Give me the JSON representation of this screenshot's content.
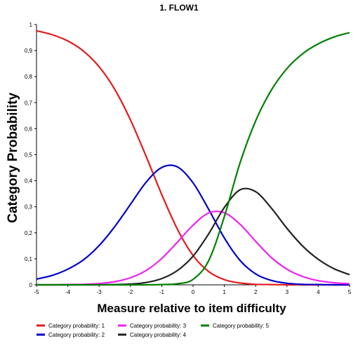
{
  "chart_data": {
    "type": "line",
    "title": "1. FLOW1",
    "xlabel": "Measure relative to item difficulty",
    "ylabel": "Category Probability",
    "xlim": [
      -5,
      5
    ],
    "ylim": [
      0,
      1
    ],
    "x_ticks": [
      "-5",
      "-4",
      "-3",
      "-2",
      "-1",
      "0",
      "1",
      "2",
      "3",
      "4",
      "5"
    ],
    "y_ticks": [
      "0",
      "0,1",
      "0,2",
      "0,3",
      "0,4",
      "0,5",
      "0,6",
      "0,7",
      "0,8",
      "0,9",
      "1"
    ],
    "grid": false,
    "legend_position": "bottom",
    "x": [
      -5,
      -4.5,
      -4,
      -3.5,
      -3,
      -2.5,
      -2,
      -1.5,
      -1,
      -0.5,
      0,
      0.5,
      1,
      1.5,
      2,
      2.5,
      3,
      3.5,
      4,
      4.5,
      5
    ],
    "series": [
      {
        "name": "Category probability: 1",
        "color": "#e31a1c",
        "values": [
          0.976,
          0.961,
          0.937,
          0.898,
          0.838,
          0.751,
          0.634,
          0.494,
          0.347,
          0.214,
          0.113,
          0.051,
          0.02,
          0.007,
          0.002,
          0.001,
          0.0,
          0.0,
          0.0,
          0.0,
          0.0
        ]
      },
      {
        "name": "Category probability: 2",
        "color": "#0000cc",
        "values": [
          0.022,
          0.036,
          0.06,
          0.096,
          0.151,
          0.224,
          0.309,
          0.394,
          0.451,
          0.453,
          0.392,
          0.29,
          0.18,
          0.094,
          0.042,
          0.017,
          0.006,
          0.002,
          0.001,
          0.0,
          0.0
        ]
      },
      {
        "name": "Category probability: 3",
        "color": "#ee22ee",
        "values": [
          0.0,
          0.0,
          0.001,
          0.002,
          0.005,
          0.012,
          0.027,
          0.055,
          0.101,
          0.164,
          0.229,
          0.276,
          0.277,
          0.233,
          0.167,
          0.105,
          0.06,
          0.032,
          0.016,
          0.008,
          0.004
        ]
      },
      {
        "name": "Category probability: 4",
        "color": "#222222",
        "values": [
          0.0,
          0.0,
          0.0,
          0.0,
          0.0,
          0.001,
          0.003,
          0.009,
          0.024,
          0.055,
          0.11,
          0.196,
          0.297,
          0.365,
          0.358,
          0.295,
          0.217,
          0.149,
          0.098,
          0.062,
          0.039
        ]
      },
      {
        "name": "Category probability: 5",
        "color": "#008000",
        "values": [
          0.0,
          0.0,
          0.0,
          0.0,
          0.0,
          0.0,
          0.0,
          0.0,
          0.001,
          0.004,
          0.021,
          0.093,
          0.262,
          0.468,
          0.63,
          0.748,
          0.831,
          0.888,
          0.926,
          0.952,
          0.969
        ]
      }
    ]
  }
}
